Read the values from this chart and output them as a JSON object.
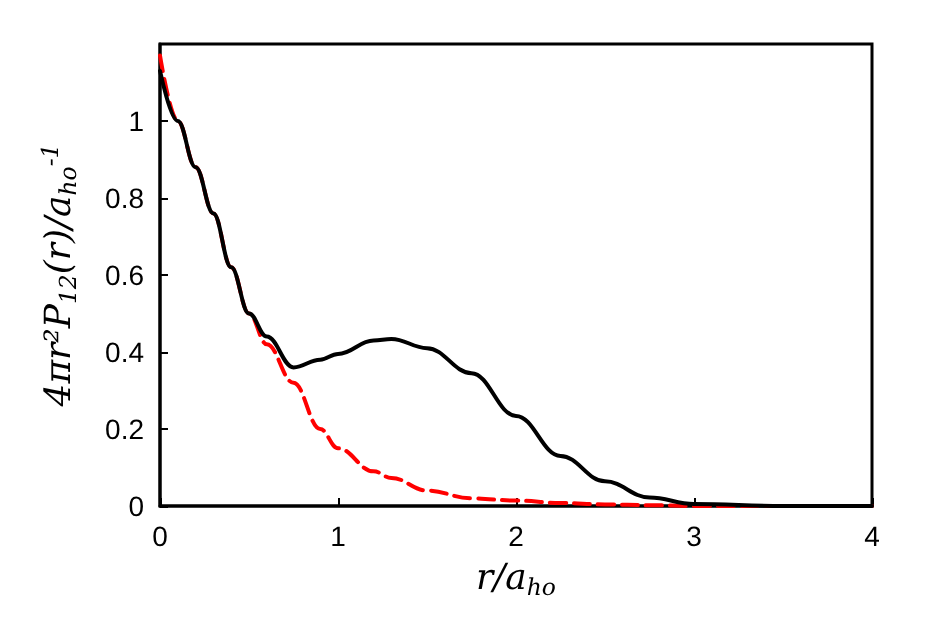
{
  "chart_data": {
    "type": "line",
    "xlabel": "r/a$_{ho}$",
    "ylabel": "4πr²P$_{12}$(r)/a$_{ho}$$^{-1}$",
    "x": [
      0,
      0.1,
      0.2,
      0.3,
      0.4,
      0.5,
      0.6,
      0.75,
      0.9,
      1.0,
      1.2,
      1.3,
      1.5,
      1.75,
      2.0,
      2.25,
      2.5,
      2.75,
      3.0,
      3.5,
      4.0
    ],
    "series": [
      {
        "color": "#000000",
        "line_style": "solid",
        "values": [
          1.13,
          1.0,
          0.88,
          0.76,
          0.62,
          0.5,
          0.44,
          0.36,
          0.38,
          0.395,
          0.43,
          0.434,
          0.41,
          0.345,
          0.234,
          0.13,
          0.064,
          0.022,
          0.005,
          0,
          0
        ]
      },
      {
        "color": "#ff0000",
        "line_style": "dashed",
        "values": [
          1.17,
          1.0,
          0.88,
          0.76,
          0.62,
          0.5,
          0.42,
          0.32,
          0.2,
          0.15,
          0.09,
          0.073,
          0.04,
          0.02,
          0.014,
          0.008,
          0.004,
          0.002,
          0,
          0,
          0
        ]
      }
    ],
    "xlim": [
      0,
      4
    ],
    "xticks": [
      0,
      1,
      2,
      3,
      4
    ],
    "ylim": [
      0,
      1.2
    ],
    "yticks": [
      0,
      0.2,
      0.4,
      0.6,
      0.8,
      1
    ],
    "marker": "none"
  }
}
